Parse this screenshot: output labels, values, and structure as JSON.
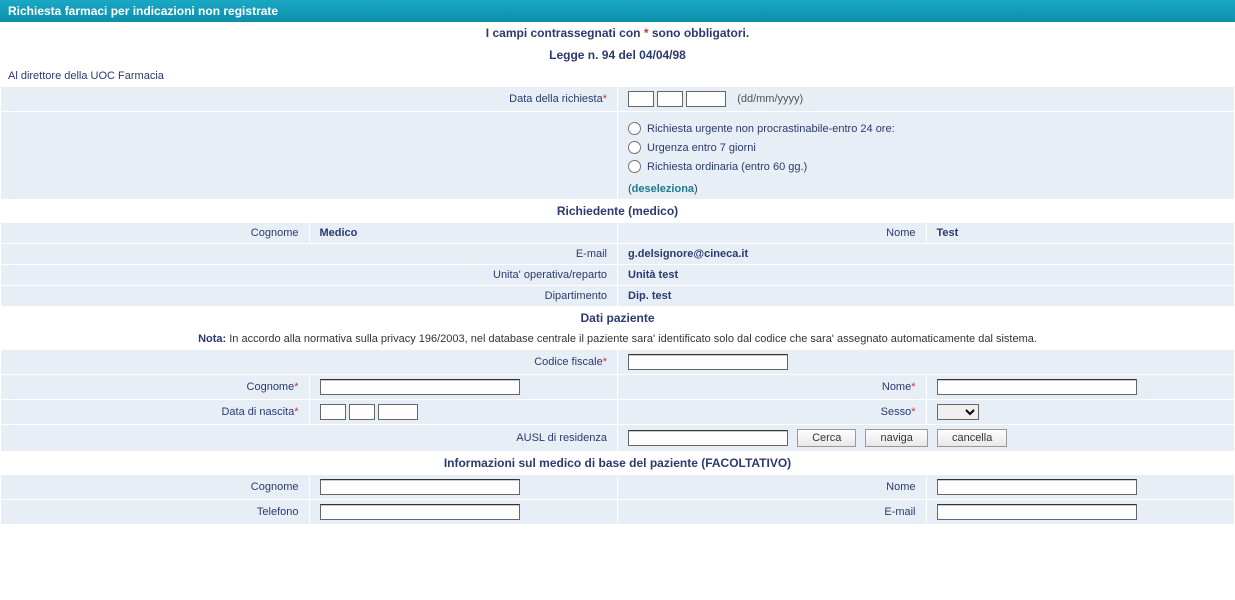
{
  "header": {
    "title": "Richiesta farmaci per indicazioni non registrate"
  },
  "intro": {
    "required_note_pre": "I campi contrassegnati con ",
    "required_note_star": "*",
    "required_note_post": " sono obbligatori.",
    "law": "Legge n. 94 del 04/04/98",
    "addressee": "Al direttore della UOC Farmacia"
  },
  "request": {
    "date_label": "Data della richiesta",
    "date_hint": "(dd/mm/yyyy)",
    "urgency_options": {
      "opt1": "Richiesta urgente non procrastinabile-entro 24 ore:",
      "opt2": "Urgenza entro 7 giorni",
      "opt3": "Richiesta ordinaria (entro 60 gg.)"
    },
    "deselect": "deseleziona"
  },
  "sections": {
    "requester": "Richiedente (medico)",
    "patient": "Dati paziente",
    "gp": "Informazioni sul medico di base del paziente (FACOLTATIVO)"
  },
  "requester": {
    "surname_label": "Cognome",
    "surname_value": "Medico",
    "name_label": "Nome",
    "name_value": "Test",
    "email_label": "E-mail",
    "email_value": "g.delsignore@cineca.it",
    "unit_label": "Unita' operativa/reparto",
    "unit_value": "Unità test",
    "dept_label": "Dipartimento",
    "dept_value": "Dip. test"
  },
  "patient_note": {
    "bold": "Nota:",
    "text": " In accordo alla normativa sulla privacy 196/2003, nel database centrale il paziente sara' identificato solo dal codice che sara' assegnato automaticamente dal sistema."
  },
  "patient": {
    "cf_label": "Codice fiscale",
    "surname_label": "Cognome",
    "name_label": "Nome",
    "dob_label": "Data di nascita",
    "sex_label": "Sesso",
    "ausl_label": "AUSL di residenza",
    "btn_search": "Cerca",
    "btn_browse": "naviga",
    "btn_clear": "cancella"
  },
  "gp": {
    "surname_label": "Cognome",
    "name_label": "Nome",
    "phone_label": "Telefono",
    "email_label": "E-mail"
  }
}
